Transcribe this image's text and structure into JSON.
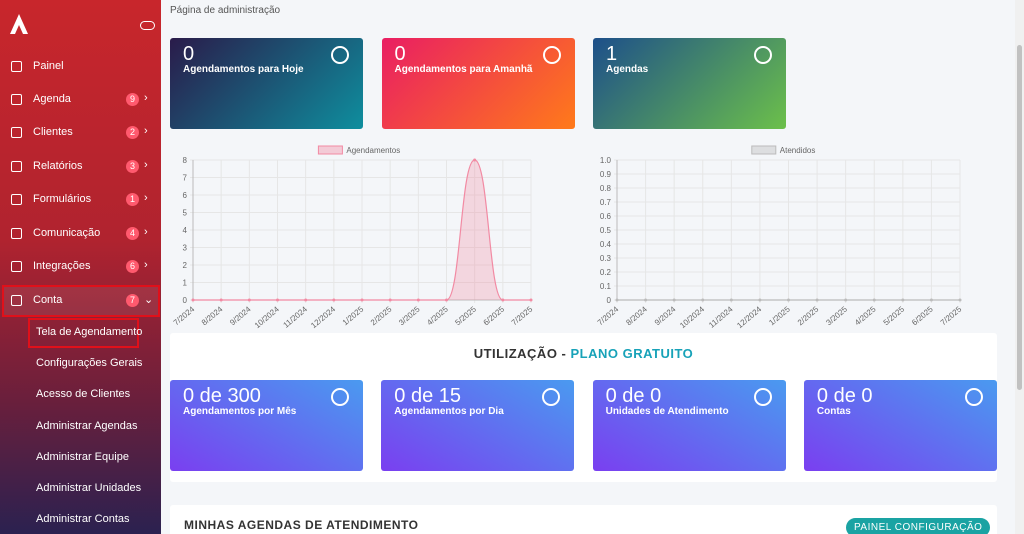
{
  "sidebar": {
    "menu": [
      {
        "label": "Painel"
      },
      {
        "label": "Agenda",
        "badge": 9
      },
      {
        "label": "Clientes",
        "badge": 2
      },
      {
        "label": "Relatórios",
        "badge": 3
      },
      {
        "label": "Formulários",
        "badge": 1
      },
      {
        "label": "Comunicação",
        "badge": 4
      },
      {
        "label": "Integrações",
        "badge": 6
      },
      {
        "label": "Conta",
        "badge": 7
      }
    ],
    "submenu": [
      "Tela de Agendamento",
      "Configurações Gerais",
      "Acesso de Clientes",
      "Administrar Agendas",
      "Administrar Equipe",
      "Administrar Unidades",
      "Administrar Contas"
    ]
  },
  "breadcrumb": "Página de administração",
  "stats": [
    {
      "value": 0,
      "label": "Agendamentos para Hoje"
    },
    {
      "value": 0,
      "label": "Agendamentos para Amanhã"
    },
    {
      "value": 1,
      "label": "Agendas"
    }
  ],
  "charts": [
    {
      "type": "line",
      "categories": [
        "7/2024",
        "8/2024",
        "9/2024",
        "10/2024",
        "11/2024",
        "12/2024",
        "1/2025",
        "2/2025",
        "3/2025",
        "4/2025",
        "5/2025",
        "6/2025",
        "7/2025"
      ],
      "series": [
        {
          "name": "Agendamentos",
          "color": "#f28aa3",
          "values": [
            0,
            0,
            0,
            0,
            0,
            0,
            0,
            0,
            0,
            0,
            8,
            0,
            0
          ]
        }
      ],
      "ylim": [
        0,
        8
      ],
      "yticks": [
        0,
        1,
        2,
        3,
        4,
        5,
        6,
        7,
        8
      ],
      "grid": true
    },
    {
      "type": "line",
      "categories": [
        "7/2024",
        "8/2024",
        "9/2024",
        "10/2024",
        "11/2024",
        "12/2024",
        "1/2025",
        "2/2025",
        "3/2025",
        "4/2025",
        "5/2025",
        "6/2025",
        "7/2025"
      ],
      "series": [
        {
          "name": "Atendidos",
          "color": "#bbbbbb",
          "values": [
            0,
            0,
            0,
            0,
            0,
            0,
            0,
            0,
            0,
            0,
            0,
            0,
            0
          ]
        }
      ],
      "ylim": [
        0,
        1
      ],
      "yticks": [
        0,
        0.1,
        0.2,
        0.3,
        0.4,
        0.5,
        0.6,
        0.7,
        0.8,
        0.9,
        {
          "value": 1,
          "label": "1.0"
        }
      ],
      "grid": true
    }
  ],
  "usage": {
    "title": "UTILIZAÇÃO - ",
    "plan": "PLANO GRATUITO",
    "cards": [
      {
        "value": "0 de 300",
        "label": "Agendamentos por Mês"
      },
      {
        "value": "0 de 15",
        "label": "Agendamentos por Dia"
      },
      {
        "value": "0 de 0",
        "label": "Unidades de Atendimento"
      },
      {
        "value": "0 de 0",
        "label": "Contas"
      }
    ]
  },
  "agendas": {
    "title": "MINHAS AGENDAS DE ATENDIMENTO",
    "button": "PAINEL CONFIGURAÇÃO"
  }
}
